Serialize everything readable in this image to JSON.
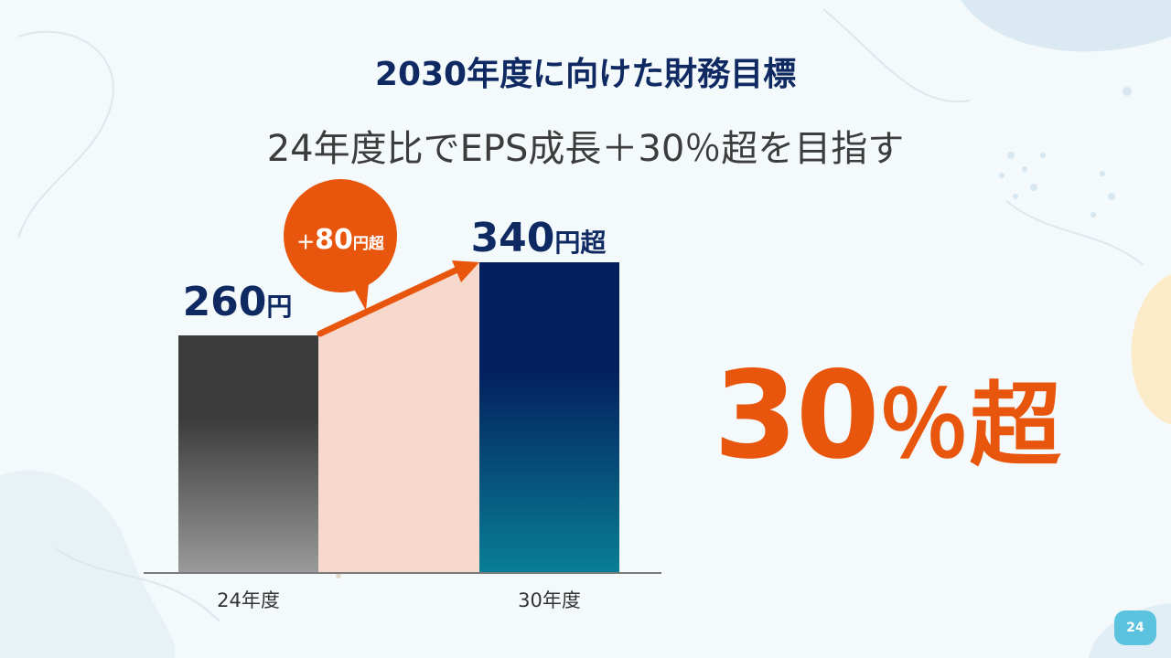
{
  "slide": {
    "title": "2030年度に向けた財務目標",
    "subtitle": "24年度比でEPS成長＋30％超を目指す",
    "highlight_value": "30",
    "highlight_unit": "％超",
    "page_number": "24"
  },
  "chart_data": {
    "type": "bar",
    "categories": [
      "24年度",
      "30年度"
    ],
    "values": [
      260,
      340
    ],
    "data_labels": [
      {
        "num": "260",
        "unit": "円"
      },
      {
        "num": "340",
        "unit": "円超"
      }
    ],
    "delta_label": {
      "sign": "＋",
      "num": "80",
      "unit": "円超"
    },
    "ylim": [
      0,
      400
    ],
    "grid": false,
    "colors": {
      "bar_24": [
        "#3c3c3c",
        "#9a9a9a"
      ],
      "bar_30": [
        "#04205e",
        "#087f95"
      ],
      "growth_band": "#f6d9cc",
      "accent": "#e8560e",
      "label": "#0f2a62"
    }
  }
}
